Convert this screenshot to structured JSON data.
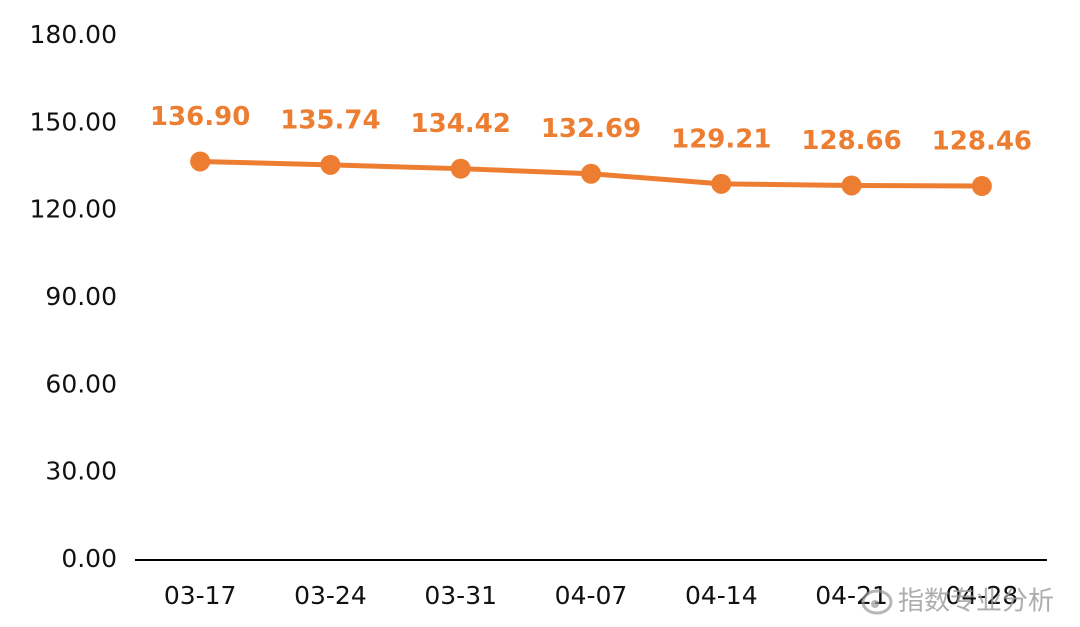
{
  "chart_data": {
    "type": "line",
    "categories": [
      "03-17",
      "03-24",
      "03-31",
      "04-07",
      "04-14",
      "04-21",
      "04-28"
    ],
    "series": [
      {
        "name": "value",
        "color": "#ed7d31",
        "values": [
          136.9,
          135.74,
          134.42,
          132.69,
          129.21,
          128.66,
          128.46
        ],
        "value_labels": [
          "136.90",
          "135.74",
          "134.42",
          "132.69",
          "129.21",
          "128.66",
          "128.46"
        ]
      }
    ],
    "ylim": [
      0,
      180
    ],
    "yticks": [
      {
        "value": 0,
        "label": "0.00"
      },
      {
        "value": 30,
        "label": "30.00"
      },
      {
        "value": 60,
        "label": "60.00"
      },
      {
        "value": 90,
        "label": "90.00"
      },
      {
        "value": 120,
        "label": "120.00"
      },
      {
        "value": 150,
        "label": "150.00"
      },
      {
        "value": 180,
        "label": "180.00"
      }
    ],
    "grid": false,
    "watermark": "指数专业分析"
  }
}
